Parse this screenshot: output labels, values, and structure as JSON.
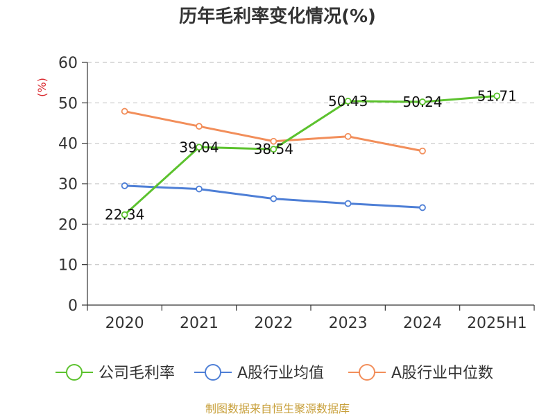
{
  "chart_data": {
    "type": "line",
    "title": "历年毛利率变化情况(%)",
    "ylabel": "(%)",
    "xlabel": "",
    "categories": [
      "2020",
      "2021",
      "2022",
      "2023",
      "2024",
      "2025H1"
    ],
    "ylim": [
      0,
      60
    ],
    "yticks": [
      0,
      10,
      20,
      30,
      40,
      50,
      60
    ],
    "grid": true,
    "grid_style": "dashed",
    "legend_position": "bottom",
    "series": [
      {
        "name": "公司毛利率",
        "color": "#5cc22e",
        "values": [
          22.34,
          39.04,
          38.54,
          50.43,
          50.24,
          51.71
        ],
        "labels": [
          "22.34",
          "39.04",
          "38.54",
          "50.43",
          "50.24",
          "51.71"
        ]
      },
      {
        "name": "A股行业均值",
        "color": "#4e7fd6",
        "values": [
          29.5,
          28.7,
          26.3,
          25.1,
          24.1,
          null
        ]
      },
      {
        "name": "A股行业中位数",
        "color": "#f28e5a",
        "values": [
          47.9,
          44.2,
          40.5,
          41.7,
          38.1,
          null
        ]
      }
    ]
  },
  "source_note": "制图数据来自恒生聚源数据库"
}
